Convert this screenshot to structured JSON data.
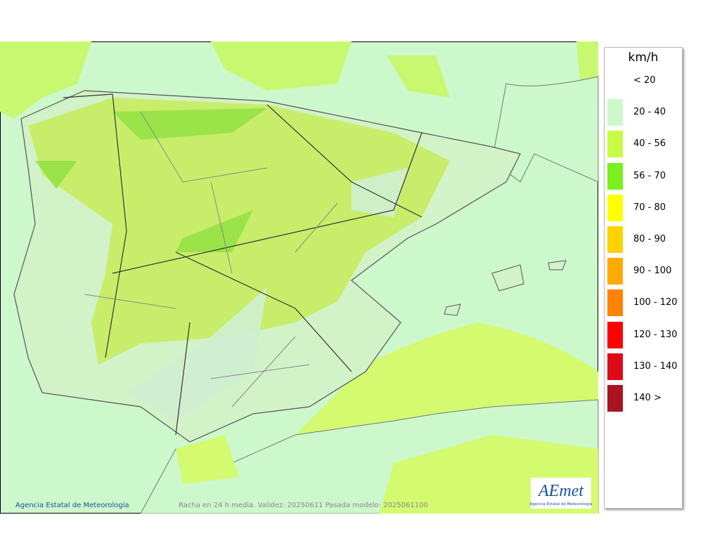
{
  "legend": {
    "title": "km/h",
    "items": [
      {
        "label": "< 20",
        "color": "#ffffff"
      },
      {
        "label": "20 - 40",
        "color": "#ccf8cc"
      },
      {
        "label": "40 - 56",
        "color": "#c8fa46"
      },
      {
        "label": "56 - 70",
        "color": "#7af01e"
      },
      {
        "label": "70 - 80",
        "color": "#ffff00"
      },
      {
        "label": "80 - 90",
        "color": "#ffd200"
      },
      {
        "label": "90 - 100",
        "color": "#ffaa00"
      },
      {
        "label": "100 - 120",
        "color": "#ff8200"
      },
      {
        "label": "120 - 130",
        "color": "#ff0000"
      },
      {
        "label": "130 - 140",
        "color": "#dc0a14"
      },
      {
        "label": "140 >",
        "color": "#aa1420"
      }
    ]
  },
  "footer": {
    "credit": "Agencia Estatal de Meteorología",
    "caption": "Racha en 24 h media. Validez: 20250611 Pasada modelo: 2025061100"
  },
  "logo": {
    "name": "AEmet",
    "subtitle": "Agencia Estatal de Meteorología"
  }
}
